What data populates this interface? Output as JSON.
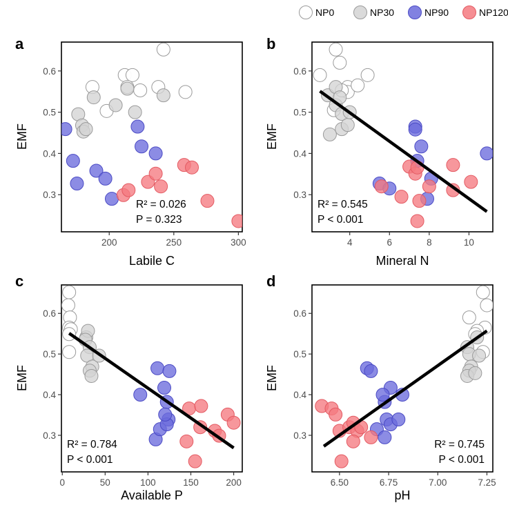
{
  "legend": {
    "position": "top-right",
    "items": [
      {
        "name": "NP0",
        "fill": "#ffffff",
        "stroke": "#9a9a9a"
      },
      {
        "name": "NP30",
        "fill": "#d4d4d4",
        "stroke": "#9a9a9a"
      },
      {
        "name": "NP90",
        "fill": "#6b6bdc",
        "stroke": "#4a4ac4"
      },
      {
        "name": "NP120",
        "fill": "#f57a80",
        "stroke": "#e35a62"
      }
    ]
  },
  "chart_data": [
    {
      "panel": "a",
      "type": "scatter",
      "xlabel": "Labile C",
      "ylabel": "EMF",
      "xlim": [
        163,
        303
      ],
      "ylim": [
        0.21,
        0.67
      ],
      "xticks": [
        200,
        250,
        300
      ],
      "yticks": [
        0.3,
        0.4,
        0.5,
        0.6
      ],
      "ytick_labels": [
        "0.3",
        "0.4",
        "0.5",
        "0.6"
      ],
      "stats": {
        "r2_label": "R² = 0.026",
        "p_label": "P = 0.323",
        "position": "bottom-center"
      },
      "fit": null,
      "series": [
        {
          "name": "NP0",
          "points": [
            [
              187,
              0.561
            ],
            [
              198,
              0.503
            ],
            [
              212,
              0.59
            ],
            [
              218,
              0.59
            ],
            [
              214,
              0.561
            ],
            [
              224,
              0.553
            ],
            [
              238,
              0.561
            ],
            [
              242,
              0.652
            ],
            [
              259,
              0.549
            ]
          ]
        },
        {
          "name": "NP30",
          "points": [
            [
              176,
              0.495
            ],
            [
              179,
              0.468
            ],
            [
              180,
              0.453
            ],
            [
              182,
              0.459
            ],
            [
              188,
              0.536
            ],
            [
              205,
              0.517
            ],
            [
              214,
              0.557
            ],
            [
              220,
              0.5
            ],
            [
              242,
              0.541
            ]
          ]
        },
        {
          "name": "NP90",
          "points": [
            [
              166,
              0.459
            ],
            [
              172,
              0.382
            ],
            [
              175,
              0.327
            ],
            [
              190,
              0.358
            ],
            [
              197,
              0.339
            ],
            [
              202,
              0.29
            ],
            [
              222,
              0.465
            ],
            [
              225,
              0.417
            ],
            [
              236,
              0.4
            ]
          ]
        },
        {
          "name": "NP120",
          "points": [
            [
              211,
              0.299
            ],
            [
              215,
              0.311
            ],
            [
              230,
              0.331
            ],
            [
              236,
              0.351
            ],
            [
              240,
              0.32
            ],
            [
              258,
              0.372
            ],
            [
              264,
              0.366
            ],
            [
              276,
              0.285
            ],
            [
              300,
              0.236
            ]
          ]
        }
      ]
    },
    {
      "panel": "b",
      "type": "scatter",
      "xlabel": "Mineral N",
      "ylabel": "EMF",
      "xlim": [
        2.1,
        11.2
      ],
      "ylim": [
        0.21,
        0.67
      ],
      "xticks": [
        4,
        6,
        8,
        10
      ],
      "yticks": [
        0.3,
        0.4,
        0.5,
        0.6
      ],
      "ytick_labels": [
        "0.3",
        "0.4",
        "0.5",
        "0.6"
      ],
      "stats": {
        "r2_label": "R² = 0.545",
        "p_label": "P < 0.001",
        "position": "bottom-left"
      },
      "fit": [
        [
          2.5,
          0.551
        ],
        [
          10.9,
          0.259
        ]
      ],
      "series": [
        {
          "name": "NP0",
          "points": [
            [
              2.5,
              0.59
            ],
            [
              3.3,
              0.652
            ],
            [
              3.5,
              0.62
            ],
            [
              3.9,
              0.561
            ],
            [
              3.9,
              0.549
            ],
            [
              4.4,
              0.565
            ],
            [
              4.9,
              0.59
            ],
            [
              3.2,
              0.505
            ],
            [
              3.6,
              0.553
            ]
          ]
        },
        {
          "name": "NP30",
          "points": [
            [
              2.9,
              0.541
            ],
            [
              3.0,
              0.446
            ],
            [
              3.3,
              0.561
            ],
            [
              3.3,
              0.517
            ],
            [
              3.5,
              0.536
            ],
            [
              3.6,
              0.496
            ],
            [
              3.6,
              0.459
            ],
            [
              3.9,
              0.469
            ],
            [
              4.0,
              0.5
            ]
          ]
        },
        {
          "name": "NP90",
          "points": [
            [
              5.5,
              0.327
            ],
            [
              6.0,
              0.315
            ],
            [
              7.3,
              0.465
            ],
            [
              7.3,
              0.458
            ],
            [
              7.4,
              0.382
            ],
            [
              7.6,
              0.417
            ],
            [
              7.9,
              0.29
            ],
            [
              8.1,
              0.339
            ],
            [
              10.9,
              0.4
            ]
          ]
        },
        {
          "name": "NP120",
          "points": [
            [
              5.6,
              0.32
            ],
            [
              6.6,
              0.295
            ],
            [
              7.0,
              0.368
            ],
            [
              7.3,
              0.351
            ],
            [
              7.4,
              0.366
            ],
            [
              7.5,
              0.285
            ],
            [
              7.4,
              0.236
            ],
            [
              8.0,
              0.32
            ],
            [
              9.2,
              0.372
            ],
            [
              9.2,
              0.311
            ],
            [
              10.1,
              0.331
            ]
          ]
        }
      ]
    },
    {
      "panel": "c",
      "type": "scatter",
      "xlabel": "Available P",
      "ylabel": "EMF",
      "xlim": [
        -1,
        210
      ],
      "ylim": [
        0.21,
        0.67
      ],
      "xticks": [
        0,
        50,
        100,
        150,
        200
      ],
      "yticks": [
        0.3,
        0.4,
        0.5,
        0.6
      ],
      "ytick_labels": [
        "0.3",
        "0.4",
        "0.5",
        "0.6"
      ],
      "stats": {
        "r2_label": "R² = 0.784",
        "p_label": "P < 0.001",
        "position": "bottom-left"
      },
      "fit": [
        [
          8,
          0.551
        ],
        [
          200,
          0.269
        ]
      ],
      "series": [
        {
          "name": "NP0",
          "points": [
            [
              8,
              0.652
            ],
            [
              7,
              0.62
            ],
            [
              9,
              0.59
            ],
            [
              8,
              0.565
            ],
            [
              10,
              0.561
            ],
            [
              8,
              0.549
            ],
            [
              8,
              0.505
            ]
          ]
        },
        {
          "name": "NP30",
          "points": [
            [
              28,
              0.541
            ],
            [
              30,
              0.557
            ],
            [
              27,
              0.535
            ],
            [
              32,
              0.517
            ],
            [
              29,
              0.496
            ],
            [
              35,
              0.469
            ],
            [
              32,
              0.459
            ],
            [
              34,
              0.446
            ],
            [
              43,
              0.496
            ]
          ]
        },
        {
          "name": "NP90",
          "points": [
            [
              91,
              0.4
            ],
            [
              109,
              0.29
            ],
            [
              111,
              0.465
            ],
            [
              114,
              0.315
            ],
            [
              119,
              0.417
            ],
            [
              122,
              0.382
            ],
            [
              125,
              0.458
            ],
            [
              124,
              0.339
            ],
            [
              122,
              0.327
            ],
            [
              120,
              0.351
            ]
          ]
        },
        {
          "name": "NP120",
          "points": [
            [
              145,
              0.285
            ],
            [
              148,
              0.366
            ],
            [
              155,
              0.236
            ],
            [
              161,
              0.32
            ],
            [
              162,
              0.372
            ],
            [
              178,
              0.311
            ],
            [
              183,
              0.299
            ],
            [
              193,
              0.351
            ],
            [
              200,
              0.331
            ]
          ]
        }
      ]
    },
    {
      "panel": "d",
      "type": "scatter",
      "xlabel": "pH",
      "ylabel": "EMF",
      "xlim": [
        6.36,
        7.28
      ],
      "ylim": [
        0.21,
        0.67
      ],
      "xticks": [
        6.5,
        6.75,
        7.0,
        7.25
      ],
      "xtick_labels": [
        "6.50",
        "6.75",
        "7.00",
        "7.25"
      ],
      "yticks": [
        0.3,
        0.4,
        0.5,
        0.6
      ],
      "ytick_labels": [
        "0.3",
        "0.4",
        "0.5",
        "0.6"
      ],
      "stats": {
        "r2_label": "R² = 0.745",
        "p_label": "P < 0.001",
        "position": "bottom-right"
      },
      "fit": [
        [
          6.42,
          0.273
        ],
        [
          7.25,
          0.557
        ]
      ],
      "series": [
        {
          "name": "NP0",
          "points": [
            [
              7.23,
              0.652
            ],
            [
              7.25,
              0.62
            ],
            [
              7.16,
              0.59
            ],
            [
              7.24,
              0.565
            ],
            [
              7.2,
              0.557
            ],
            [
              7.19,
              0.549
            ],
            [
              7.23,
              0.505
            ]
          ]
        },
        {
          "name": "NP30",
          "points": [
            [
              7.15,
              0.517
            ],
            [
              7.16,
              0.5
            ],
            [
              7.21,
              0.496
            ],
            [
              7.17,
              0.469
            ],
            [
              7.16,
              0.459
            ],
            [
              7.15,
              0.446
            ],
            [
              7.19,
              0.453
            ],
            [
              7.2,
              0.541
            ]
          ]
        },
        {
          "name": "NP90",
          "points": [
            [
              6.64,
              0.465
            ],
            [
              6.66,
              0.458
            ],
            [
              6.73,
              0.382
            ],
            [
              6.76,
              0.417
            ],
            [
              6.72,
              0.4
            ],
            [
              6.74,
              0.339
            ],
            [
              6.69,
              0.315
            ],
            [
              6.73,
              0.295
            ],
            [
              6.76,
              0.327
            ],
            [
              6.82,
              0.4
            ],
            [
              6.8,
              0.339
            ]
          ]
        },
        {
          "name": "NP120",
          "points": [
            [
              6.41,
              0.372
            ],
            [
              6.46,
              0.366
            ],
            [
              6.48,
              0.351
            ],
            [
              6.5,
              0.311
            ],
            [
              6.55,
              0.32
            ],
            [
              6.57,
              0.331
            ],
            [
              6.59,
              0.311
            ],
            [
              6.61,
              0.32
            ],
            [
              6.57,
              0.285
            ],
            [
              6.66,
              0.295
            ],
            [
              6.51,
              0.236
            ]
          ]
        }
      ]
    }
  ]
}
